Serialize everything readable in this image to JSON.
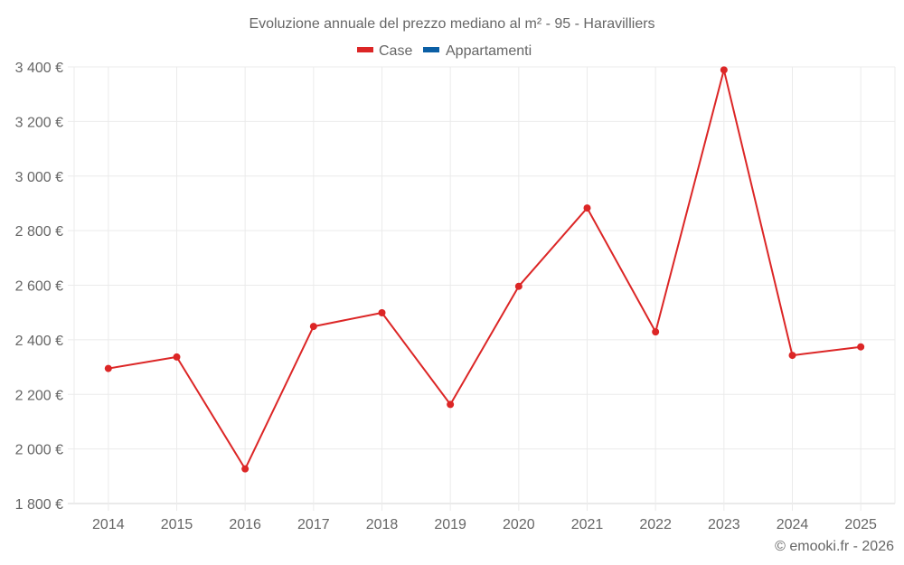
{
  "chart_data": {
    "type": "line",
    "title": "Evoluzione annuale del prezzo mediano al m² - 95 - Haravilliers",
    "xlabel": "",
    "ylabel": "",
    "categories": [
      "2014",
      "2015",
      "2016",
      "2017",
      "2018",
      "2019",
      "2020",
      "2021",
      "2022",
      "2023",
      "2024",
      "2025"
    ],
    "series": [
      {
        "name": "Case",
        "color": "#dc2626",
        "values": [
          2295,
          2337,
          1927,
          2449,
          2499,
          2163,
          2596,
          2883,
          2429,
          3389,
          2343,
          2374
        ]
      },
      {
        "name": "Appartamenti",
        "color": "#0b5fa5",
        "values": []
      }
    ],
    "ylim": [
      1800,
      3400
    ],
    "yticks": [
      1800,
      2000,
      2200,
      2400,
      2600,
      2800,
      3000,
      3200,
      3400
    ],
    "ytick_labels": [
      "1 800 €",
      "2 000 €",
      "2 200 €",
      "2 400 €",
      "2 600 €",
      "2 800 €",
      "3 000 €",
      "3 200 €",
      "3 400 €"
    ],
    "grid": true,
    "legend_position": "top-center"
  },
  "legend": [
    {
      "label": "Case",
      "color": "#dc2626"
    },
    {
      "label": "Appartamenti",
      "color": "#0b5fa5"
    }
  ],
  "credit": "© emooki.fr - 2026"
}
